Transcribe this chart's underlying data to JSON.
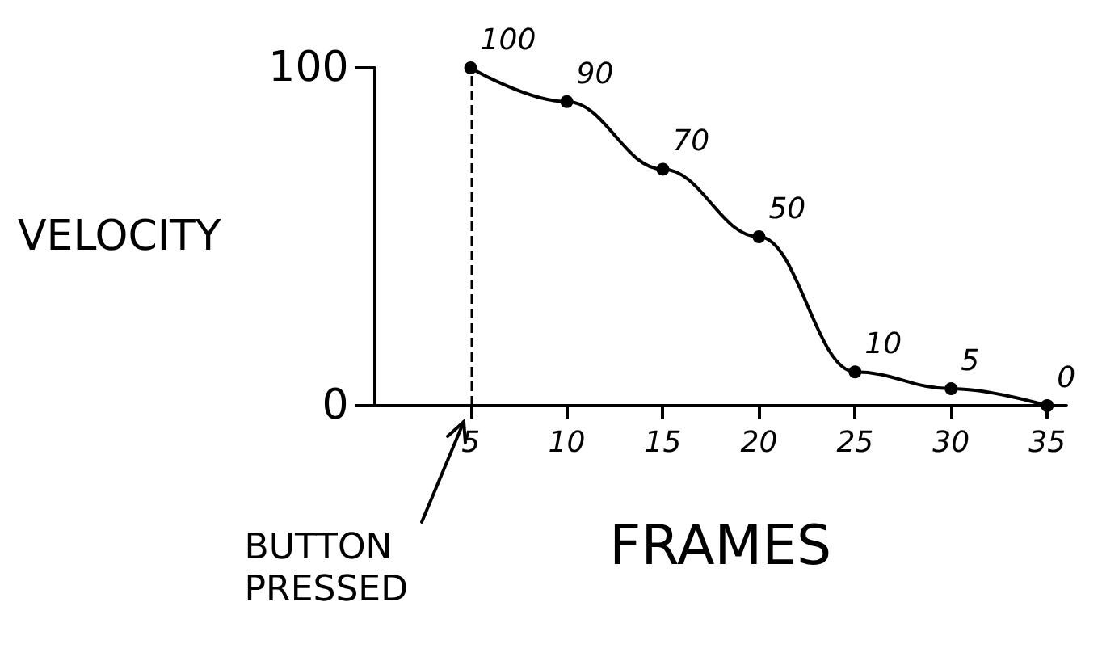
{
  "chart_data": {
    "type": "line",
    "xlabel": "FRAMES",
    "ylabel": "VELOCITY",
    "x": [
      5,
      10,
      15,
      20,
      25,
      30,
      35
    ],
    "series": [
      {
        "color": "#000000",
        "values": [
          100,
          90,
          70,
          50,
          10,
          5,
          0
        ]
      }
    ],
    "data_labels": true,
    "marker": "circle",
    "line_style": "solid",
    "grid": false,
    "xlim": [
      0,
      36
    ],
    "xticks": [
      5,
      10,
      15,
      20,
      25,
      30,
      35
    ],
    "ylim": [
      0,
      100
    ],
    "yticks": [
      0,
      100
    ],
    "ref_lines": [
      {
        "axis": "x",
        "value": 5,
        "line_style": "dashed",
        "color": "#000000"
      }
    ],
    "annotations": [
      "BUTTON PRESSED"
    ]
  }
}
